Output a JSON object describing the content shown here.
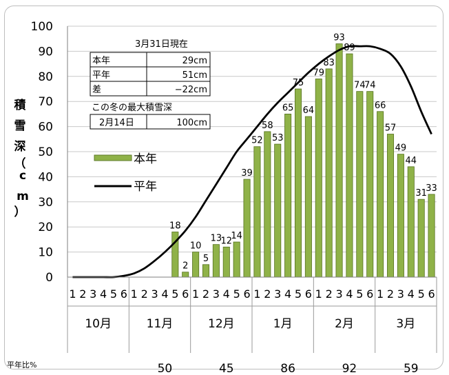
{
  "chart_data": {
    "type": "bar",
    "ylabel": "積雪深（cm）",
    "ylim": [
      0,
      100
    ],
    "yticks": [
      0,
      10,
      20,
      30,
      40,
      50,
      60,
      70,
      80,
      90,
      100
    ],
    "x_sub_labels": [
      "1",
      "2",
      "3",
      "4",
      "5",
      "6"
    ],
    "months": [
      "10月",
      "11月",
      "12月",
      "1月",
      "2月",
      "3月"
    ],
    "series": [
      {
        "name": "本年",
        "color": "#8fb248",
        "values": [
          null,
          null,
          null,
          null,
          null,
          null,
          null,
          null,
          null,
          null,
          18,
          2,
          10,
          5,
          13,
          12,
          14,
          39,
          52,
          58,
          53,
          65,
          75,
          64,
          79,
          83,
          93,
          89,
          74,
          74,
          66,
          57,
          49,
          44,
          31,
          33
        ]
      },
      {
        "name": "平年",
        "color": "#000000",
        "values": [
          0,
          0,
          0,
          0,
          0,
          0.5,
          1.5,
          3.5,
          6.5,
          10,
          14,
          18.5,
          24,
          30.5,
          37,
          43.5,
          50,
          55,
          60,
          65,
          69.5,
          73.5,
          77.5,
          81.5,
          85,
          88,
          90.5,
          92,
          92,
          92,
          91,
          89,
          84,
          76,
          66,
          57
        ]
      }
    ],
    "legend": [
      "本年",
      "平年"
    ],
    "grid": true
  },
  "info_box": {
    "title": "3月31日現在",
    "rows": [
      {
        "label": "本年",
        "value": "29cm"
      },
      {
        "label": "平年",
        "value": "51cm"
      },
      {
        "label": "差",
        "value": "−22cm"
      }
    ],
    "max_title": "この冬の最大積雪深",
    "max_date": "2月14日",
    "max_value": "100cm"
  },
  "ratio": {
    "label": "平年比%",
    "values": [
      "50",
      "45",
      "86",
      "92",
      "59"
    ]
  }
}
